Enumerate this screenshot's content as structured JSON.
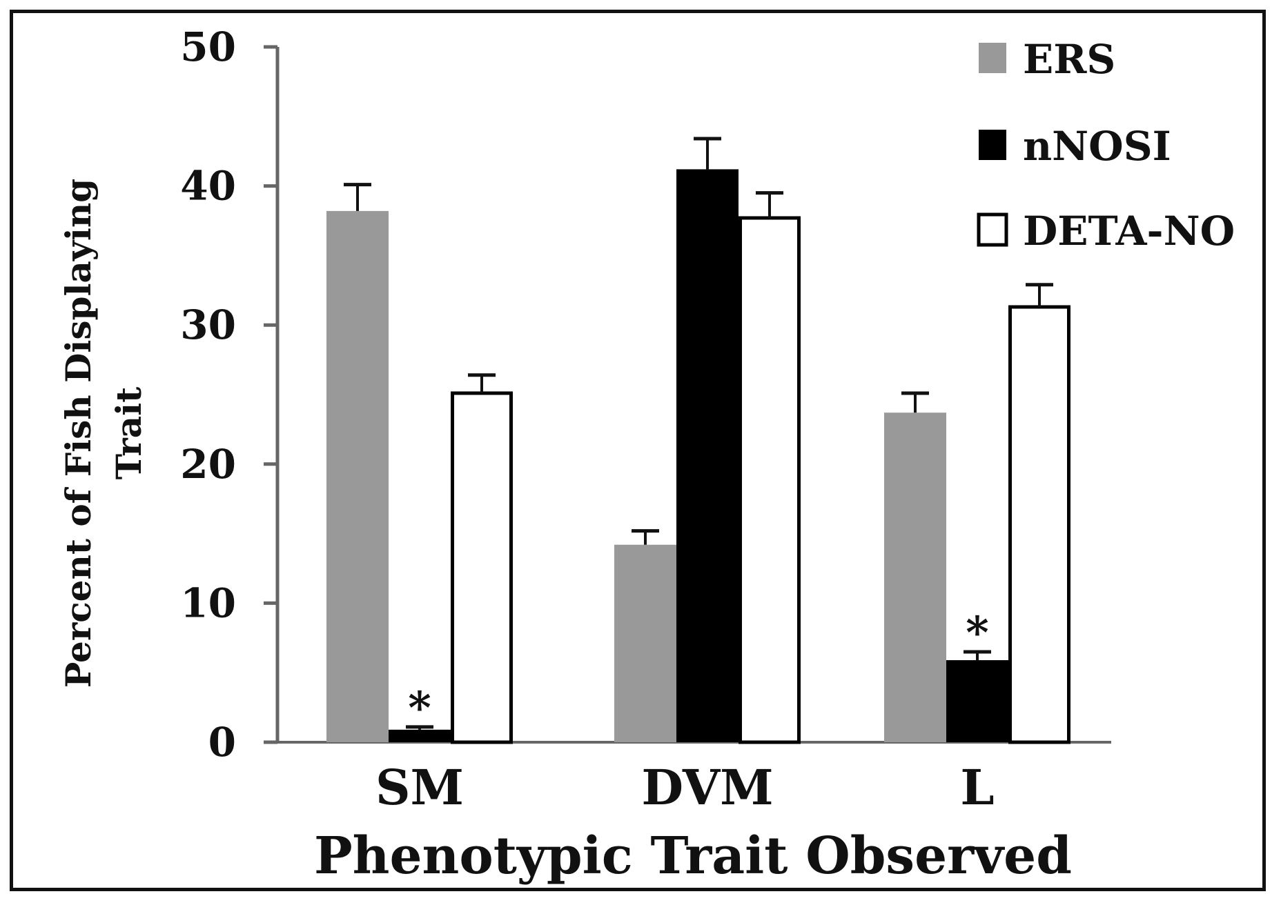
{
  "chart_data": {
    "type": "bar",
    "title": "",
    "xlabel": "Phenotypic Trait Observed",
    "ylabel": "Percent of Fish Displaying Trait",
    "ylim": [
      0,
      50
    ],
    "yticks": [
      0,
      10,
      20,
      30,
      40,
      50
    ],
    "grid": false,
    "legend_position": "top-right",
    "categories": [
      "SM",
      "DVM",
      "L"
    ],
    "series": [
      {
        "name": "ERS",
        "color": "#999999",
        "edge": "#999999",
        "values": [
          38.2,
          14.2,
          23.7
        ],
        "errors": [
          1.9,
          1.0,
          1.4
        ]
      },
      {
        "name": "nNOSI",
        "color": "#000000",
        "edge": "#000000",
        "values": [
          0.9,
          41.2,
          5.9
        ],
        "errors": [
          0.2,
          2.2,
          0.6
        ]
      },
      {
        "name": "DETA-NO",
        "color": "#ffffff",
        "edge": "#000000",
        "values": [
          25.1,
          37.7,
          31.3
        ],
        "errors": [
          1.3,
          1.8,
          1.6
        ]
      }
    ],
    "annotations": [
      {
        "text": "*",
        "category": "SM",
        "series": "nNOSI"
      },
      {
        "text": "*",
        "category": "L",
        "series": "nNOSI"
      }
    ]
  }
}
